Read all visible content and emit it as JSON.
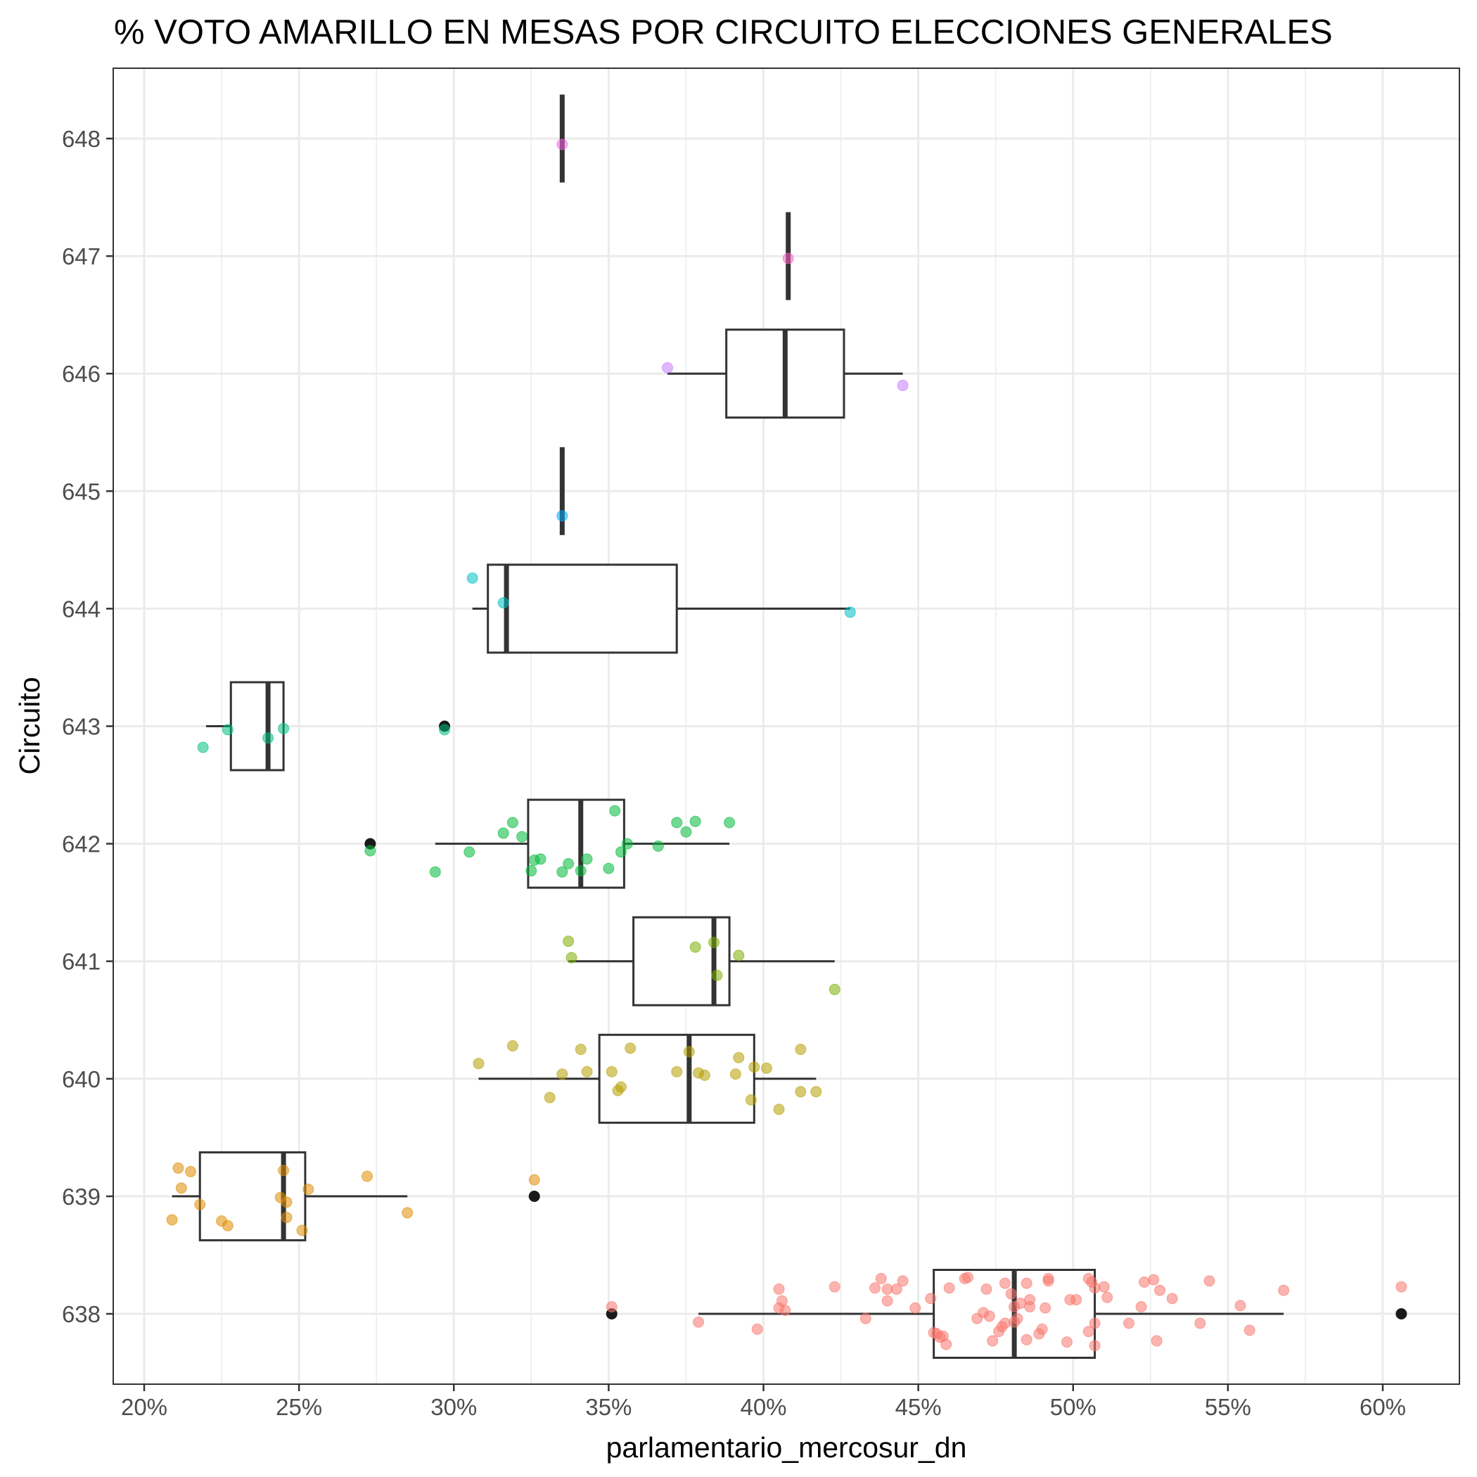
{
  "chart_data": {
    "type": "boxplot",
    "orientation": "horizontal",
    "title": "% VOTO AMARILLO EN MESAS POR CIRCUITO  ELECCIONES GENERALES",
    "xlabel": "parlamentario_mercosur_dn",
    "ylabel": "Circuito",
    "xlim": [
      0.19,
      0.625
    ],
    "x_ticks": [
      0.2,
      0.25,
      0.3,
      0.35,
      0.4,
      0.45,
      0.5,
      0.55,
      0.6
    ],
    "x_tick_labels": [
      "20%",
      "25%",
      "30%",
      "35%",
      "40%",
      "45%",
      "50%",
      "55%",
      "60%"
    ],
    "categories": [
      "638",
      "639",
      "640",
      "641",
      "642",
      "643",
      "644",
      "645",
      "646",
      "647",
      "648"
    ],
    "grid": true,
    "theme": "bw",
    "series": [
      {
        "name": "638",
        "color": "#F8766D",
        "box": {
          "whisker_low": 0.379,
          "q1": 0.455,
          "median": 0.481,
          "q3": 0.507,
          "whisker_high": 0.568
        },
        "outliers": [
          0.351,
          0.606
        ],
        "points": [
          {
            "x": 0.351,
            "dy": 0.06
          },
          {
            "x": 0.379,
            "dy": -0.07
          },
          {
            "x": 0.398,
            "dy": -0.13
          },
          {
            "x": 0.405,
            "dy": 0.21
          },
          {
            "x": 0.405,
            "dy": 0.05
          },
          {
            "x": 0.406,
            "dy": 0.11
          },
          {
            "x": 0.407,
            "dy": 0.03
          },
          {
            "x": 0.423,
            "dy": 0.23
          },
          {
            "x": 0.433,
            "dy": -0.04
          },
          {
            "x": 0.436,
            "dy": 0.22
          },
          {
            "x": 0.438,
            "dy": 0.3
          },
          {
            "x": 0.44,
            "dy": 0.11
          },
          {
            "x": 0.44,
            "dy": 0.21
          },
          {
            "x": 0.443,
            "dy": 0.21
          },
          {
            "x": 0.445,
            "dy": 0.28
          },
          {
            "x": 0.449,
            "dy": 0.05
          },
          {
            "x": 0.454,
            "dy": 0.13
          },
          {
            "x": 0.455,
            "dy": -0.16
          },
          {
            "x": 0.456,
            "dy": -0.17
          },
          {
            "x": 0.457,
            "dy": -0.2
          },
          {
            "x": 0.458,
            "dy": -0.19
          },
          {
            "x": 0.459,
            "dy": -0.26
          },
          {
            "x": 0.46,
            "dy": 0.22
          },
          {
            "x": 0.465,
            "dy": 0.3
          },
          {
            "x": 0.466,
            "dy": 0.31
          },
          {
            "x": 0.469,
            "dy": -0.04
          },
          {
            "x": 0.471,
            "dy": 0.01
          },
          {
            "x": 0.472,
            "dy": 0.21
          },
          {
            "x": 0.473,
            "dy": -0.02
          },
          {
            "x": 0.474,
            "dy": -0.23
          },
          {
            "x": 0.476,
            "dy": -0.15
          },
          {
            "x": 0.477,
            "dy": -0.11
          },
          {
            "x": 0.478,
            "dy": -0.08
          },
          {
            "x": 0.478,
            "dy": 0.26
          },
          {
            "x": 0.48,
            "dy": 0.17
          },
          {
            "x": 0.481,
            "dy": -0.07
          },
          {
            "x": 0.481,
            "dy": 0.06
          },
          {
            "x": 0.482,
            "dy": -0.04
          },
          {
            "x": 0.483,
            "dy": 0.09
          },
          {
            "x": 0.485,
            "dy": -0.22
          },
          {
            "x": 0.485,
            "dy": 0.26
          },
          {
            "x": 0.486,
            "dy": 0.12
          },
          {
            "x": 0.486,
            "dy": 0.06
          },
          {
            "x": 0.489,
            "dy": -0.17
          },
          {
            "x": 0.49,
            "dy": -0.13
          },
          {
            "x": 0.491,
            "dy": 0.05
          },
          {
            "x": 0.492,
            "dy": 0.28
          },
          {
            "x": 0.492,
            "dy": 0.3
          },
          {
            "x": 0.498,
            "dy": -0.24
          },
          {
            "x": 0.499,
            "dy": 0.12
          },
          {
            "x": 0.501,
            "dy": 0.12
          },
          {
            "x": 0.505,
            "dy": 0.3
          },
          {
            "x": 0.505,
            "dy": -0.15
          },
          {
            "x": 0.506,
            "dy": 0.27
          },
          {
            "x": 0.507,
            "dy": -0.08
          },
          {
            "x": 0.507,
            "dy": -0.27
          },
          {
            "x": 0.507,
            "dy": 0.22
          },
          {
            "x": 0.51,
            "dy": 0.23
          },
          {
            "x": 0.511,
            "dy": 0.14
          },
          {
            "x": 0.518,
            "dy": -0.08
          },
          {
            "x": 0.522,
            "dy": 0.06
          },
          {
            "x": 0.523,
            "dy": 0.27
          },
          {
            "x": 0.526,
            "dy": 0.29
          },
          {
            "x": 0.527,
            "dy": -0.23
          },
          {
            "x": 0.528,
            "dy": 0.2
          },
          {
            "x": 0.532,
            "dy": 0.13
          },
          {
            "x": 0.541,
            "dy": -0.08
          },
          {
            "x": 0.544,
            "dy": 0.28
          },
          {
            "x": 0.554,
            "dy": 0.07
          },
          {
            "x": 0.557,
            "dy": -0.14
          },
          {
            "x": 0.568,
            "dy": 0.2
          },
          {
            "x": 0.606,
            "dy": 0.23
          }
        ]
      },
      {
        "name": "639",
        "color": "#DE8C00",
        "box": {
          "whisker_low": 0.209,
          "q1": 0.218,
          "median": 0.245,
          "q3": 0.252,
          "whisker_high": 0.285
        },
        "outliers": [
          0.326
        ],
        "points": [
          {
            "x": 0.209,
            "dy": -0.2
          },
          {
            "x": 0.211,
            "dy": 0.24
          },
          {
            "x": 0.212,
            "dy": 0.07
          },
          {
            "x": 0.215,
            "dy": 0.21
          },
          {
            "x": 0.218,
            "dy": -0.07
          },
          {
            "x": 0.225,
            "dy": -0.21
          },
          {
            "x": 0.227,
            "dy": -0.25
          },
          {
            "x": 0.244,
            "dy": -0.01
          },
          {
            "x": 0.245,
            "dy": 0.22
          },
          {
            "x": 0.246,
            "dy": -0.05
          },
          {
            "x": 0.246,
            "dy": -0.18
          },
          {
            "x": 0.251,
            "dy": -0.29
          },
          {
            "x": 0.253,
            "dy": 0.06
          },
          {
            "x": 0.272,
            "dy": 0.17
          },
          {
            "x": 0.285,
            "dy": -0.14
          },
          {
            "x": 0.326,
            "dy": 0.14
          }
        ]
      },
      {
        "name": "640",
        "color": "#B79F00",
        "box": {
          "whisker_low": 0.308,
          "q1": 0.347,
          "median": 0.376,
          "q3": 0.397,
          "whisker_high": 0.417
        },
        "outliers": [],
        "points": [
          {
            "x": 0.308,
            "dy": 0.13
          },
          {
            "x": 0.319,
            "dy": 0.28
          },
          {
            "x": 0.331,
            "dy": -0.16
          },
          {
            "x": 0.335,
            "dy": 0.04
          },
          {
            "x": 0.341,
            "dy": 0.25
          },
          {
            "x": 0.343,
            "dy": 0.06
          },
          {
            "x": 0.351,
            "dy": 0.06
          },
          {
            "x": 0.353,
            "dy": -0.1
          },
          {
            "x": 0.354,
            "dy": -0.07
          },
          {
            "x": 0.357,
            "dy": 0.26
          },
          {
            "x": 0.372,
            "dy": 0.06
          },
          {
            "x": 0.376,
            "dy": 0.23
          },
          {
            "x": 0.379,
            "dy": 0.05
          },
          {
            "x": 0.381,
            "dy": 0.03
          },
          {
            "x": 0.391,
            "dy": 0.04
          },
          {
            "x": 0.392,
            "dy": 0.18
          },
          {
            "x": 0.396,
            "dy": -0.18
          },
          {
            "x": 0.397,
            "dy": 0.1
          },
          {
            "x": 0.401,
            "dy": 0.09
          },
          {
            "x": 0.405,
            "dy": -0.26
          },
          {
            "x": 0.412,
            "dy": 0.25
          },
          {
            "x": 0.412,
            "dy": -0.11
          },
          {
            "x": 0.417,
            "dy": -0.11
          }
        ]
      },
      {
        "name": "641",
        "color": "#7CAE00",
        "box": {
          "whisker_low": 0.337,
          "q1": 0.358,
          "median": 0.384,
          "q3": 0.389,
          "whisker_high": 0.423
        },
        "outliers": [],
        "points": [
          {
            "x": 0.337,
            "dy": 0.17
          },
          {
            "x": 0.338,
            "dy": 0.03
          },
          {
            "x": 0.378,
            "dy": 0.12
          },
          {
            "x": 0.384,
            "dy": 0.16
          },
          {
            "x": 0.385,
            "dy": -0.12
          },
          {
            "x": 0.392,
            "dy": 0.05
          },
          {
            "x": 0.423,
            "dy": -0.24
          }
        ]
      },
      {
        "name": "642",
        "color": "#00BA38",
        "box": {
          "whisker_low": 0.294,
          "q1": 0.324,
          "median": 0.341,
          "q3": 0.355,
          "whisker_high": 0.389
        },
        "outliers": [
          0.273
        ],
        "points": [
          {
            "x": 0.273,
            "dy": -0.06
          },
          {
            "x": 0.294,
            "dy": -0.24
          },
          {
            "x": 0.305,
            "dy": -0.07
          },
          {
            "x": 0.316,
            "dy": 0.09
          },
          {
            "x": 0.319,
            "dy": 0.18
          },
          {
            "x": 0.322,
            "dy": 0.06
          },
          {
            "x": 0.325,
            "dy": -0.23
          },
          {
            "x": 0.326,
            "dy": -0.14
          },
          {
            "x": 0.328,
            "dy": -0.13
          },
          {
            "x": 0.335,
            "dy": -0.24
          },
          {
            "x": 0.337,
            "dy": -0.17
          },
          {
            "x": 0.341,
            "dy": -0.23
          },
          {
            "x": 0.343,
            "dy": -0.13
          },
          {
            "x": 0.35,
            "dy": -0.21
          },
          {
            "x": 0.352,
            "dy": 0.28
          },
          {
            "x": 0.354,
            "dy": -0.07
          },
          {
            "x": 0.356,
            "dy": 0.0
          },
          {
            "x": 0.366,
            "dy": -0.02
          },
          {
            "x": 0.372,
            "dy": 0.18
          },
          {
            "x": 0.375,
            "dy": 0.1
          },
          {
            "x": 0.378,
            "dy": 0.19
          },
          {
            "x": 0.389,
            "dy": 0.18
          }
        ]
      },
      {
        "name": "643",
        "color": "#00BF7D",
        "box": {
          "whisker_low": 0.22,
          "q1": 0.228,
          "median": 0.24,
          "q3": 0.245,
          "whisker_high": 0.245
        },
        "outliers": [
          0.297
        ],
        "points": [
          {
            "x": 0.219,
            "dy": -0.18
          },
          {
            "x": 0.227,
            "dy": -0.03
          },
          {
            "x": 0.24,
            "dy": -0.1
          },
          {
            "x": 0.245,
            "dy": -0.02
          },
          {
            "x": 0.297,
            "dy": -0.03
          }
        ]
      },
      {
        "name": "644",
        "color": "#00BFC4",
        "box": {
          "whisker_low": 0.306,
          "q1": 0.311,
          "median": 0.317,
          "q3": 0.372,
          "whisker_high": 0.428
        },
        "outliers": [],
        "points": [
          {
            "x": 0.306,
            "dy": 0.26
          },
          {
            "x": 0.316,
            "dy": 0.05
          },
          {
            "x": 0.428,
            "dy": -0.03
          }
        ]
      },
      {
        "name": "645",
        "color": "#00A9FF",
        "box": {
          "whisker_low": 0.335,
          "q1": 0.335,
          "median": 0.335,
          "q3": 0.335,
          "whisker_high": 0.335
        },
        "outliers": [],
        "points": [
          {
            "x": 0.335,
            "dy": -0.21
          }
        ]
      },
      {
        "name": "646",
        "color": "#C77CFF",
        "box": {
          "whisker_low": 0.369,
          "q1": 0.388,
          "median": 0.407,
          "q3": 0.426,
          "whisker_high": 0.445
        },
        "outliers": [],
        "points": [
          {
            "x": 0.369,
            "dy": 0.05
          },
          {
            "x": 0.445,
            "dy": -0.1
          }
        ]
      },
      {
        "name": "647",
        "color": "#FF61CC",
        "box": {
          "whisker_low": 0.408,
          "q1": 0.408,
          "median": 0.408,
          "q3": 0.408,
          "whisker_high": 0.408
        },
        "outliers": [],
        "points": [
          {
            "x": 0.408,
            "dy": -0.02
          }
        ]
      },
      {
        "name": "648",
        "color": "#F564E3",
        "box": {
          "whisker_low": 0.335,
          "q1": 0.335,
          "median": 0.335,
          "q3": 0.335,
          "whisker_high": 0.335
        },
        "outliers": [],
        "points": [
          {
            "x": 0.335,
            "dy": -0.05
          }
        ]
      }
    ]
  }
}
